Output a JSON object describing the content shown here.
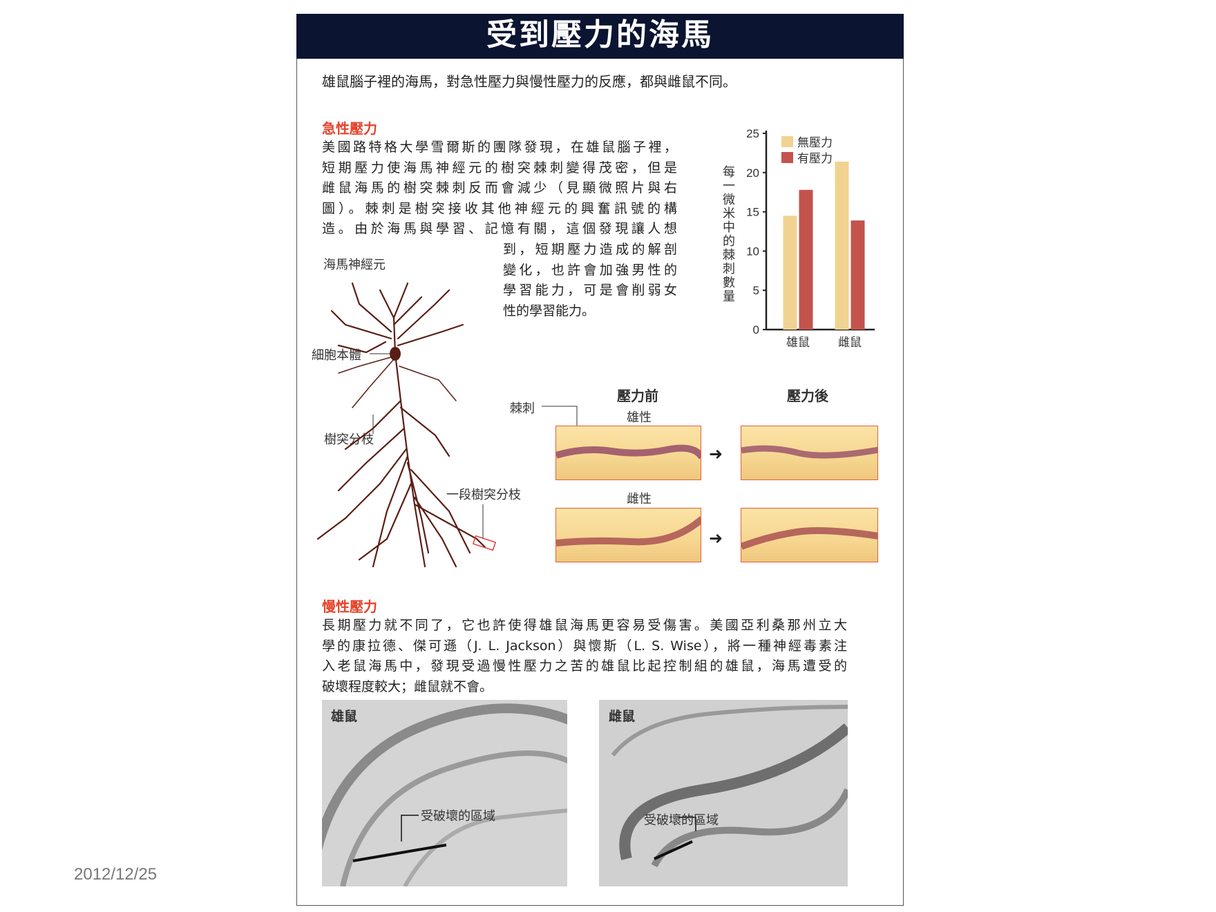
{
  "title": "受到壓力的海馬",
  "intro": "雄鼠腦子裡的海馬，對急性壓力與慢性壓力的反應，都與雌鼠不同。",
  "acute": {
    "heading": "急性壓力",
    "lines": [
      "美國路特格大學雪爾斯的團隊發現，在雄鼠腦子裡，",
      "短期壓力使海馬神經元的樹突棘刺變得茂密，但是",
      "雌鼠海馬的樹突棘刺反而會減少（見顯微照片與右",
      "圖）。棘刺是樹突接收其他神經元的興奮訊號的構",
      "造。由於海馬與學習、記憶有關，這個發現讓人想"
    ],
    "lines_short": [
      "到，短期壓力造成的解剖",
      "變化，也許會加強男性的",
      "學習能力，可是會削弱女",
      "性的學習能力。"
    ]
  },
  "neuron": {
    "title": "海馬神經元",
    "soma_label": "細胞本體",
    "branch_label": "樹突分枝",
    "segment_label": "一段樹突分枝",
    "color": "#5a1e14"
  },
  "micrographs": {
    "before": "壓力前",
    "after": "壓力後",
    "male": "雄性",
    "female": "雌性",
    "spine_label": "棘刺"
  },
  "chart_data": {
    "type": "bar",
    "categories": [
      "雄鼠",
      "雌鼠"
    ],
    "series": [
      {
        "name": "無壓力",
        "color": "#f1d391",
        "values": [
          14.5,
          21.4
        ]
      },
      {
        "name": "有壓力",
        "color": "#c4534d",
        "values": [
          17.8,
          13.9
        ]
      }
    ],
    "ylabel": "每一微米中的棘刺數量",
    "ylim": [
      0,
      25
    ],
    "yticks": [
      "0",
      "5",
      "10",
      "15",
      "20",
      "25"
    ],
    "legend": "top-left"
  },
  "chronic": {
    "heading": "慢性壓力",
    "lines": [
      "長期壓力就不同了，它也許使得雄鼠海馬更容易受傷害。美國亞利桑那州立大",
      "學的康拉德、傑可遜（J. L. Jackson）與懷斯（L. S. Wise），將一種神經毒素注",
      "入老鼠海馬中，發現受過慢性壓力之苦的雄鼠比起控制組的雄鼠，海馬遭受的",
      "破壞程度較大；雌鼠就不會。"
    ]
  },
  "photos": {
    "male": "雄鼠",
    "female": "雌鼠",
    "damage_label": "受破壞的區域"
  },
  "date": "2012/12/25"
}
